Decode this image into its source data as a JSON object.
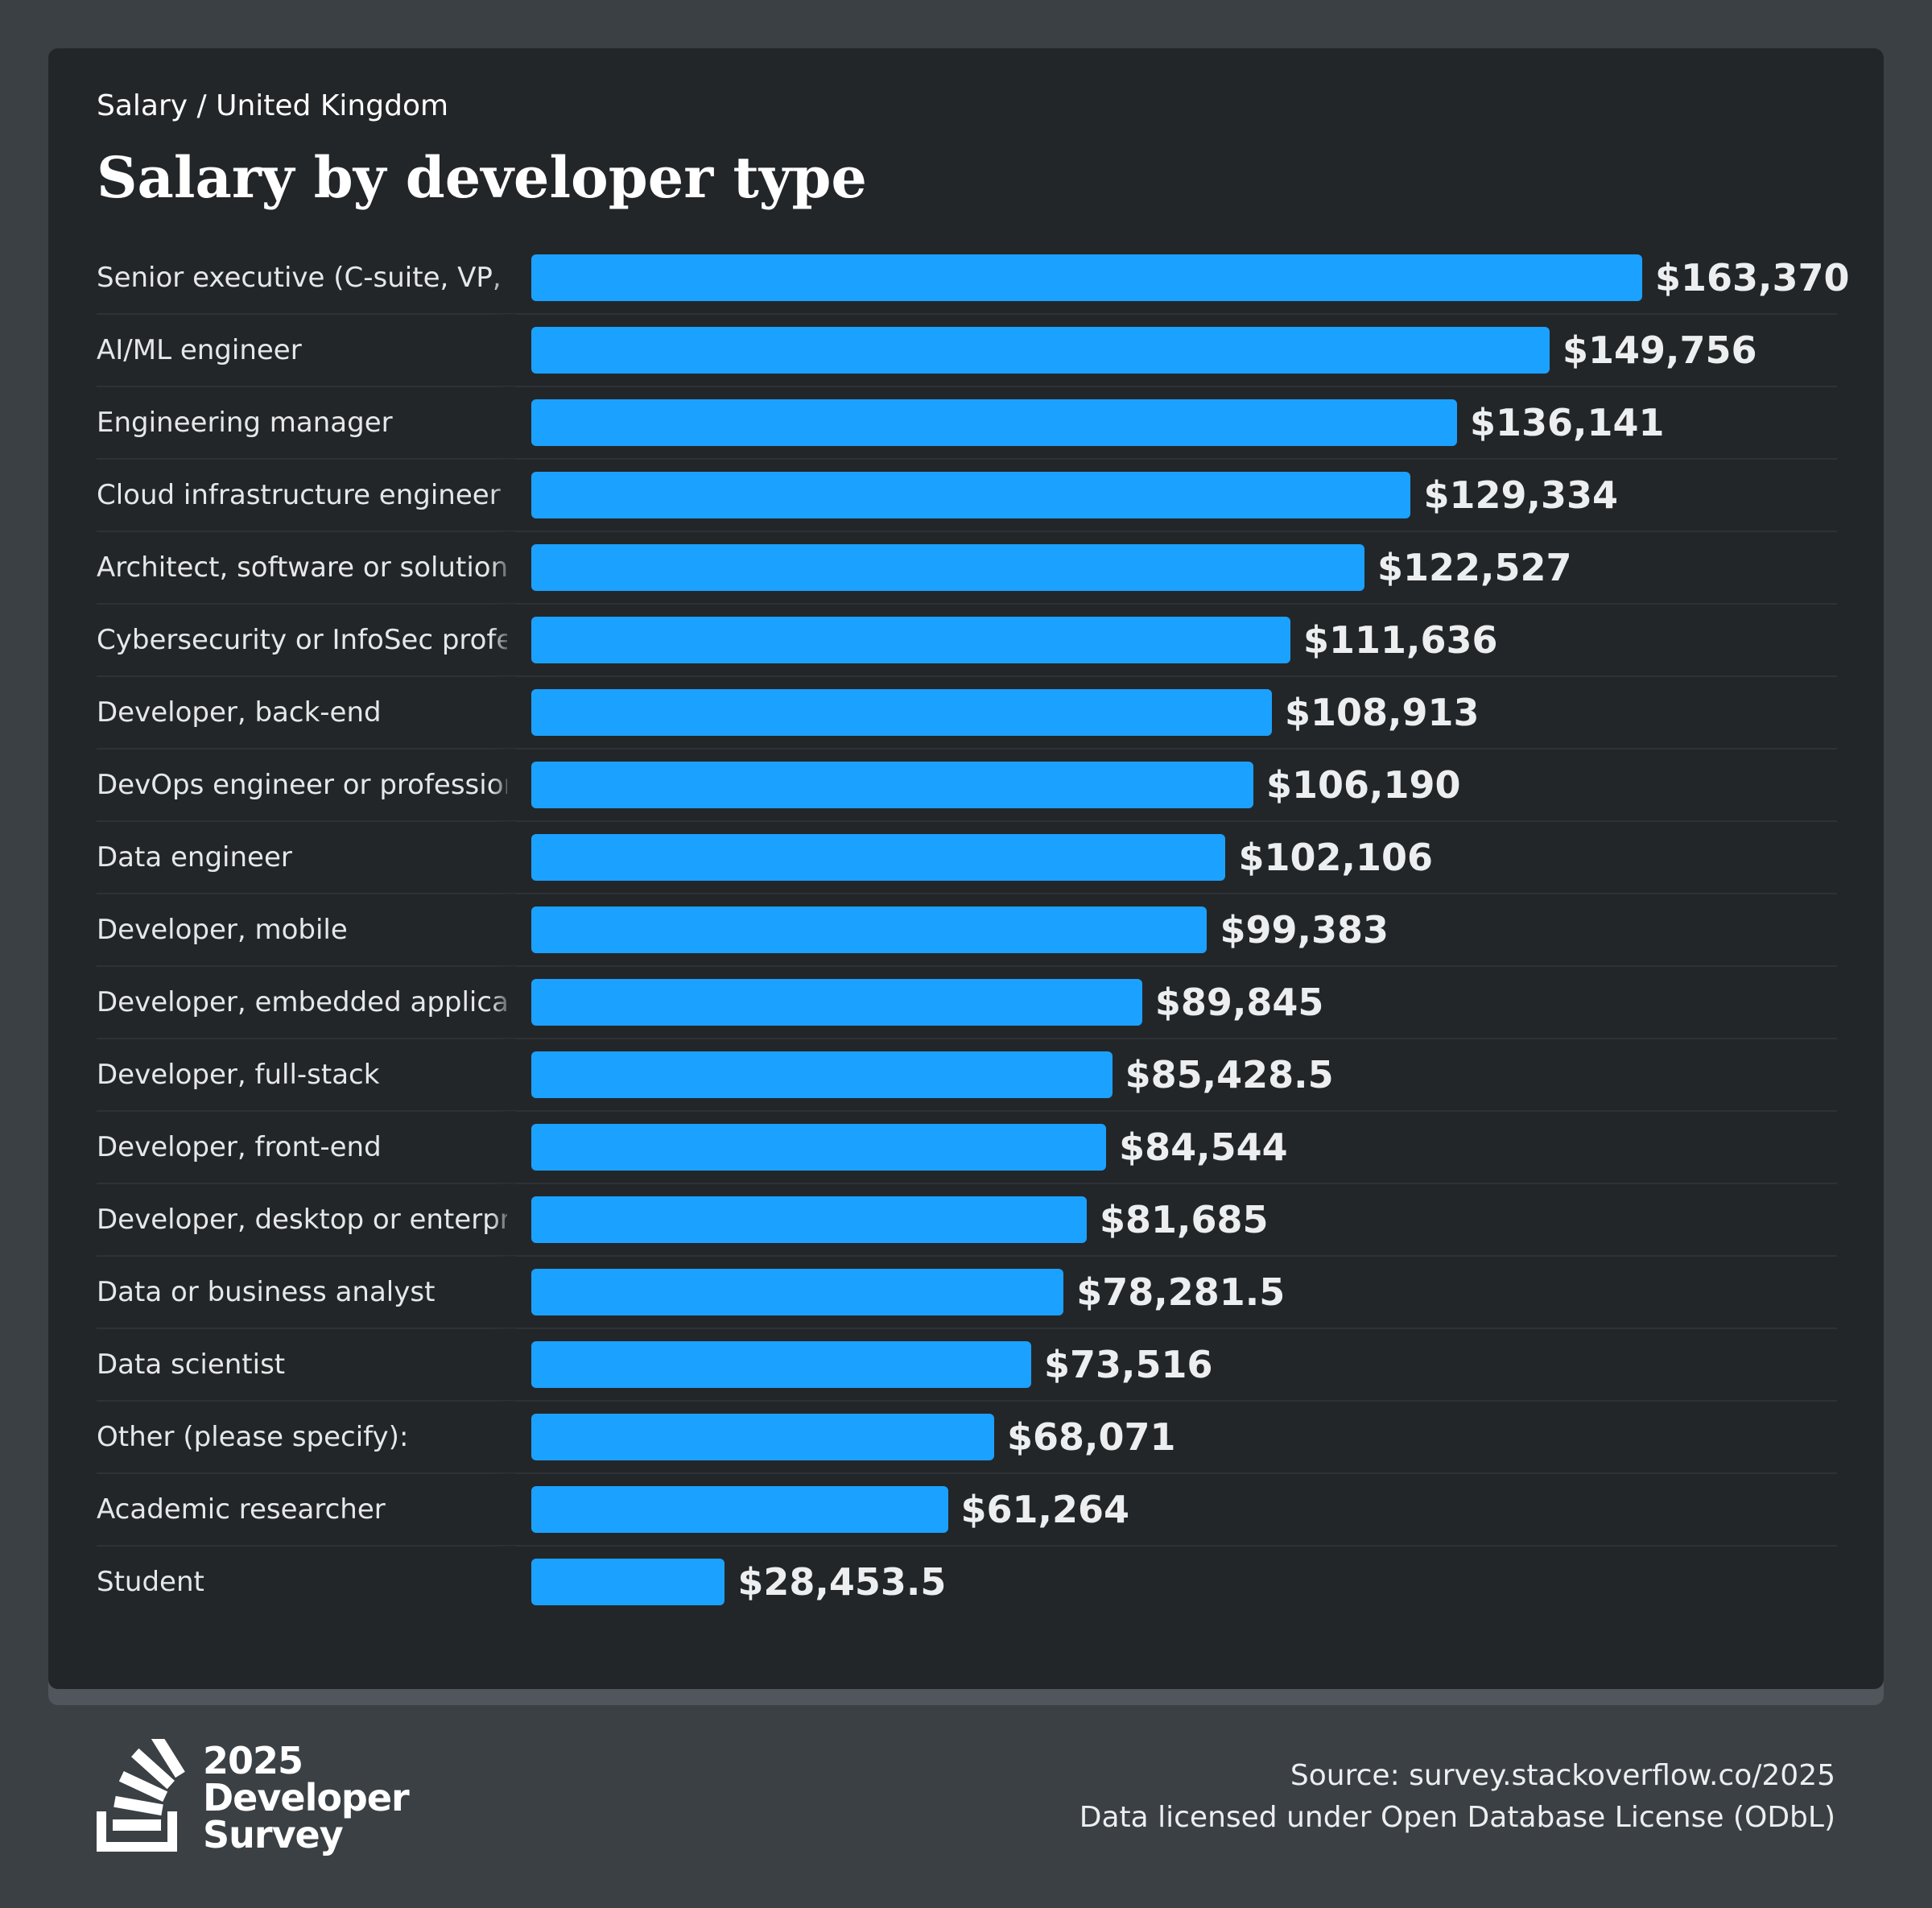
{
  "header": {
    "breadcrumb": "Salary / United Kingdom",
    "title": "Salary by developer type"
  },
  "colors": {
    "bar": "#1ba1ff",
    "background": "#3b4044",
    "card": "#232629"
  },
  "chart_data": {
    "type": "bar",
    "orientation": "horizontal",
    "title": "Salary by developer type",
    "categories": [
      "Senior executive (C-suite, VP, etc.)",
      "AI/ML engineer",
      "Engineering manager",
      "Cloud infrastructure engineer",
      "Architect, software or solutions",
      "Cybersecurity or InfoSec professional",
      "Developer, back-end",
      "DevOps engineer or professional",
      "Data engineer",
      "Developer, mobile",
      "Developer, embedded applications or devices",
      "Developer, full-stack",
      "Developer, front-end",
      "Developer, desktop or enterprise applications",
      "Data or business analyst",
      "Data scientist",
      "Other (please specify):",
      "Academic researcher",
      "Student"
    ],
    "values": [
      163370,
      149756,
      136141,
      129334,
      122527,
      111636,
      108913,
      106190,
      102106,
      99383,
      89845,
      85428.5,
      84544,
      81685,
      78281.5,
      73516,
      68071,
      61264,
      28453.5
    ],
    "value_labels": [
      "$163,370",
      "$149,756",
      "$136,141",
      "$129,334",
      "$122,527",
      "$111,636",
      "$108,913",
      "$106,190",
      "$102,106",
      "$99,383",
      "$89,845",
      "$85,428.5",
      "$84,544",
      "$81,685",
      "$78,281.5",
      "$73,516",
      "$68,071",
      "$61,264",
      "$28,453.5"
    ],
    "xlim": [
      0,
      163370
    ],
    "grid": false
  },
  "footer": {
    "logo_lines": [
      "2025",
      "Developer",
      "Survey"
    ],
    "source": "Source: survey.stackoverflow.co/2025",
    "license": "Data licensed under Open Database License (ODbL)"
  }
}
